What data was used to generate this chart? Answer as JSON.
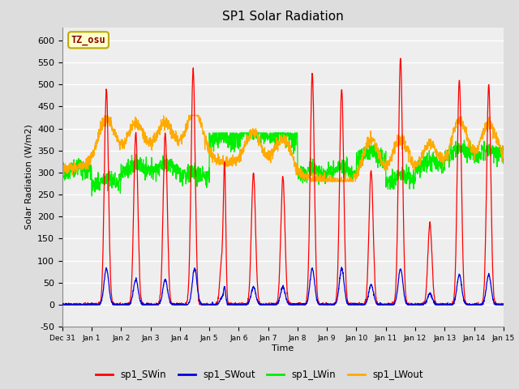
{
  "title": "SP1 Solar Radiation",
  "xlabel": "Time",
  "ylabel": "Solar Radiation (W/m2)",
  "ylim": [
    -50,
    630
  ],
  "colors": {
    "sp1_SWin": "#ff0000",
    "sp1_SWout": "#0000dd",
    "sp1_LWin": "#00ee00",
    "sp1_LWout": "#ffaa00"
  },
  "tz_label": "TZ_osu",
  "tz_box_facecolor": "#ffffcc",
  "tz_box_edgecolor": "#bbaa00",
  "tz_text_color": "#880000",
  "background_color": "#dddddd",
  "plot_bg_color": "#eeeeee",
  "grid_color": "#ffffff",
  "xtick_labels": [
    "Dec 31",
    "Jan 1",
    "Jan 2",
    "Jan 3",
    "Jan 4",
    "Jan 5",
    "Jan 6",
    "Jan 7",
    "Jan 8",
    "Jan 9",
    "Jan 10",
    "Jan 11",
    "Jan 12",
    "Jan 13",
    "Jan 14",
    "Jan 15"
  ],
  "xtick_positions": [
    0,
    1,
    2,
    3,
    4,
    5,
    6,
    7,
    8,
    9,
    10,
    11,
    12,
    13,
    14,
    15
  ]
}
